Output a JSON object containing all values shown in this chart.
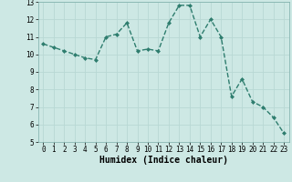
{
  "x": [
    0,
    1,
    2,
    3,
    4,
    5,
    6,
    7,
    8,
    9,
    10,
    11,
    12,
    13,
    14,
    15,
    16,
    17,
    18,
    19,
    20,
    21,
    22,
    23
  ],
  "y": [
    10.6,
    10.4,
    10.2,
    10.0,
    9.8,
    9.7,
    11.0,
    11.15,
    11.8,
    10.2,
    10.3,
    10.2,
    11.8,
    12.8,
    12.8,
    11.0,
    12.0,
    11.0,
    7.6,
    8.6,
    7.3,
    7.0,
    6.4,
    5.5
  ],
  "line_color": "#2e7d6e",
  "marker": "D",
  "marker_size": 2,
  "line_width": 1.0,
  "xlabel": "Humidex (Indice chaleur)",
  "xlim": [
    -0.5,
    23.5
  ],
  "ylim": [
    5,
    13
  ],
  "yticks": [
    5,
    6,
    7,
    8,
    9,
    10,
    11,
    12,
    13
  ],
  "xticks": [
    0,
    1,
    2,
    3,
    4,
    5,
    6,
    7,
    8,
    9,
    10,
    11,
    12,
    13,
    14,
    15,
    16,
    17,
    18,
    19,
    20,
    21,
    22,
    23
  ],
  "bg_color": "#cde8e4",
  "grid_color": "#b8d8d4",
  "tick_label_fontsize": 5.5,
  "xlabel_fontsize": 7.0
}
